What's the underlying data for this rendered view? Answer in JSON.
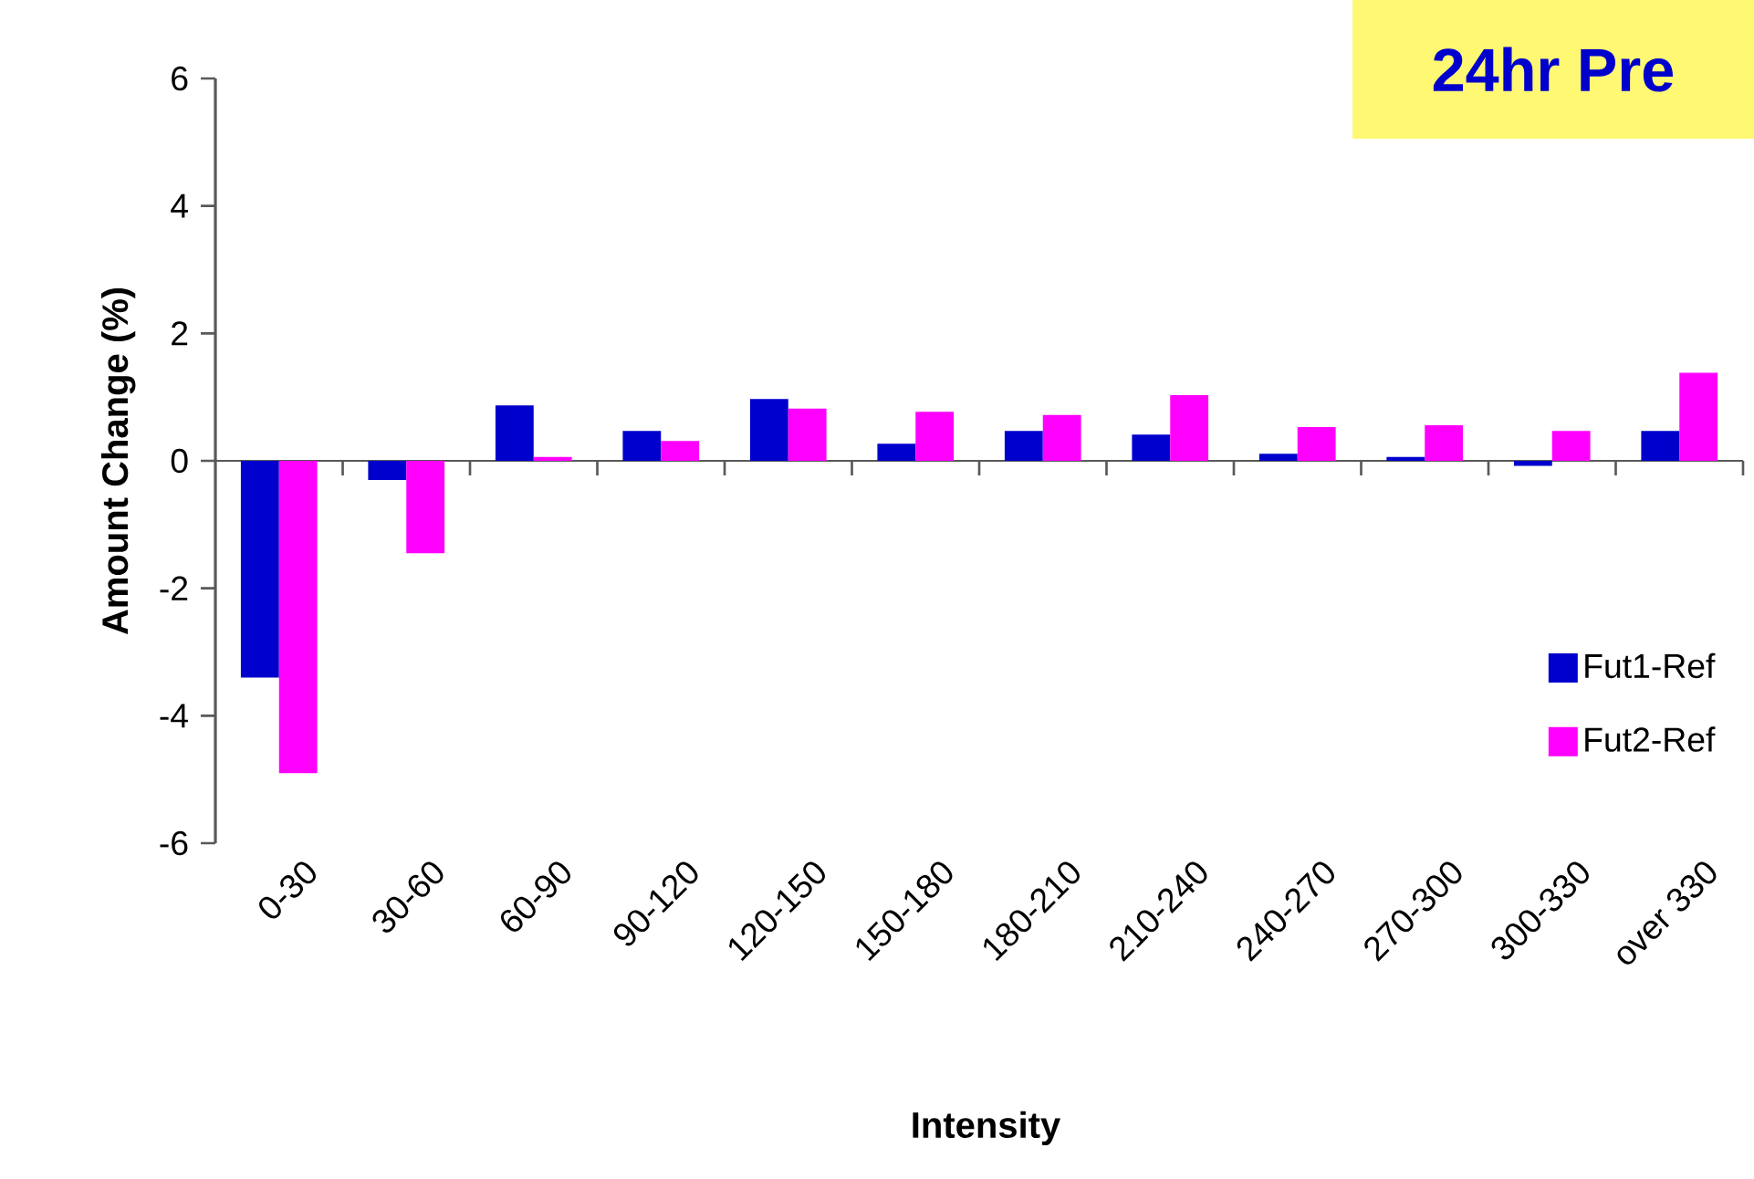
{
  "chart_data": {
    "type": "bar",
    "title": "24hr Pre",
    "xlabel": "Intensity",
    "ylabel": "Amount Change (%)",
    "categories": [
      "0-30",
      "30-60",
      "60-90",
      "90-120",
      "120-150",
      "150-180",
      "180-210",
      "210-240",
      "240-270",
      "270-300",
      "300-330",
      "over 330"
    ],
    "series": [
      {
        "name": "Fut1-Ref",
        "color": "#0000cc",
        "values": [
          -3.4,
          -0.3,
          0.87,
          0.47,
          0.97,
          0.27,
          0.47,
          0.41,
          0.11,
          0.06,
          -0.08,
          0.47
        ]
      },
      {
        "name": "Fut2-Ref",
        "color": "#ff00ff",
        "values": [
          -4.9,
          -1.45,
          0.06,
          0.31,
          0.82,
          0.77,
          0.72,
          1.03,
          0.53,
          0.56,
          0.47,
          1.38
        ]
      }
    ],
    "ylim": [
      -6,
      6
    ],
    "yticks": [
      -6,
      -4,
      -2,
      0,
      2,
      4,
      6
    ],
    "legend": "bottom right"
  }
}
